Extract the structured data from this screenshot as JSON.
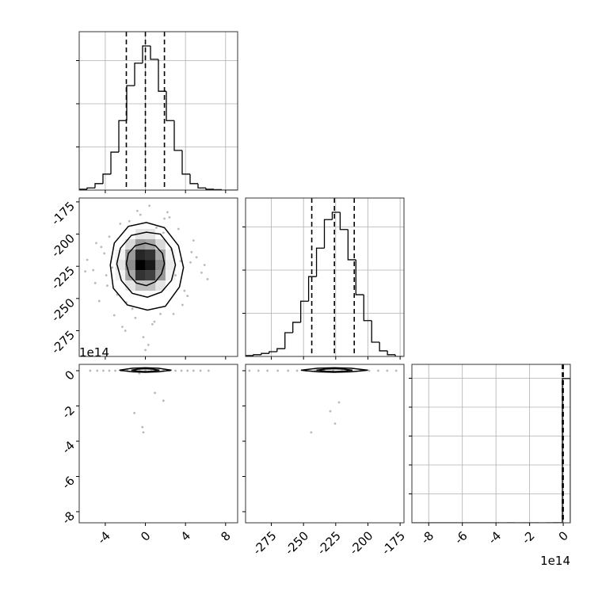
{
  "chart_data": [
    {
      "type": "histogram",
      "bins": [
        -6.6,
        -5.81,
        -5.02,
        -4.23,
        -3.44,
        -2.65,
        -1.86,
        -1.07,
        -0.28,
        0.51,
        1.3,
        2.09,
        2.88,
        3.67,
        4.46,
        5.25,
        6.04,
        6.83,
        7.62,
        8.41,
        9.2
      ],
      "counts": [
        2,
        5,
        15,
        37,
        88,
        161,
        242,
        294,
        334,
        303,
        229,
        161,
        92,
        37,
        15,
        5,
        2,
        1,
        0,
        0
      ],
      "quantiles": [
        -1.9,
        0,
        1.9
      ],
      "color": "#000000",
      "grid": true,
      "xlim": [
        -6.6,
        9.2
      ],
      "ylim": [
        0,
        367
      ],
      "xticks": [
        -4,
        0,
        4,
        8
      ],
      "yticks": [
        100,
        200,
        300
      ]
    },
    {
      "type": "scatter",
      "x": [
        -4.1,
        -3.8,
        -5.2,
        4.5,
        3.9,
        5.6,
        -2.5,
        2.8,
        -0.5,
        0.7,
        -1.3,
        1.9,
        -4.6,
        4.8,
        -3.1,
        3.3,
        -0.2,
        0.4,
        -5.8,
        6.2,
        -2.0,
        2.2,
        -3.6,
        3.7,
        1.1,
        -1.0,
        -4.4,
        4.2,
        0.0,
        -2.8,
        2.6,
        -5.0,
        5.1,
        -1.6,
        1.5,
        -3.3,
        3.0,
        0.9,
        -0.8,
        -4.9,
        4.6,
        -2.3,
        2.4,
        -6.0,
        5.9,
        -1.9,
        1.8,
        -3.9,
        3.5,
        0.3
      ],
      "y": [
        -215,
        -240,
        -228,
        -222,
        -244,
        -230,
        -192,
        -262,
        -185,
        -270,
        -258,
        -188,
        -252,
        -205,
        -263,
        -196,
        -280,
        -178,
        -220,
        -235,
        -275,
        -183,
        -202,
        -255,
        -195,
        -265,
        -210,
        -248,
        -290,
        -247,
        -212,
        -238,
        -218,
        -190,
        -262,
        -226,
        -232,
        -268,
        -182,
        -207,
        -214,
        -272,
        -187,
        -229,
        -224,
        -253,
        -199,
        -232,
        -221,
        -286
      ],
      "color": "#808080",
      "density": {
        "x_edges": [
          -3,
          -2,
          -1,
          0,
          1,
          2,
          3
        ],
        "y_edges": [
          -244,
          -236,
          -228,
          -220,
          -212,
          -204,
          -196
        ],
        "counts": [
          [
            0,
            10,
            25,
            25,
            10,
            0
          ],
          [
            5,
            35,
            80,
            75,
            40,
            5
          ],
          [
            10,
            45,
            100,
            90,
            45,
            8
          ],
          [
            5,
            40,
            85,
            80,
            35,
            5
          ],
          [
            0,
            15,
            40,
            35,
            15,
            0
          ],
          [
            0,
            0,
            10,
            10,
            0,
            0
          ]
        ]
      },
      "contours": [
        {
          "x": [
            3.8,
            3.3,
            1.9,
            0.1,
            -1.7,
            -3.1,
            -3.5,
            -3.2,
            -1.8,
            0.2,
            2.0,
            3.4
          ],
          "y": [
            -226,
            -209,
            -195,
            -191,
            -194,
            -207,
            -224,
            -242,
            -255,
            -259,
            -256,
            -241
          ]
        },
        {
          "x": [
            3.0,
            2.6,
            1.5,
            0.1,
            -1.4,
            -2.5,
            -2.85,
            -2.4,
            -1.3,
            0.2,
            1.6,
            2.6
          ],
          "y": [
            -224,
            -211,
            -200,
            -198.5,
            -201,
            -211,
            -223,
            -236,
            -246,
            -249,
            -245,
            -236
          ]
        },
        {
          "x": [
            1.9,
            1.7,
            1.0,
            0.0,
            -1.0,
            -1.7,
            -1.9,
            -1.6,
            -0.9,
            0.1,
            1.0,
            1.6
          ],
          "y": [
            -223,
            -215,
            -209,
            -207,
            -209,
            -215,
            -223,
            -232,
            -238,
            -240,
            -237,
            -231
          ]
        }
      ],
      "xlim": [
        -6.6,
        9.2
      ],
      "ylim": [
        -295,
        -172
      ],
      "xticks": [
        -4,
        0,
        4,
        8
      ],
      "yticks": [
        -275,
        -250,
        -225,
        -200,
        -175
      ]
    },
    {
      "type": "histogram",
      "bins": [
        -295,
        -288.88,
        -282.76,
        -276.64,
        -270.52,
        -264.4,
        -258.28,
        -252.16,
        -246.04,
        -239.92,
        -233.8,
        -227.68,
        -221.56,
        -215.44,
        -209.32,
        -203.2,
        -197.08,
        -190.96,
        -184.84,
        -178.72,
        -172.6
      ],
      "counts": [
        2,
        4,
        7,
        11,
        18,
        55,
        79,
        128,
        185,
        251,
        317,
        334,
        294,
        224,
        143,
        83,
        33,
        13,
        4,
        0
      ],
      "quantiles": [
        -243.6,
        -226,
        -210.6
      ],
      "color": "#000000",
      "grid": true,
      "xlim": [
        -295,
        -172
      ],
      "ylim": [
        0,
        367
      ],
      "xticks": [
        -275,
        -250,
        -225,
        -200,
        -175
      ],
      "yticks": [
        100,
        200,
        300
      ]
    },
    {
      "type": "scatter",
      "x": [
        -5.5,
        -4.8,
        -4.2,
        -3.6,
        -3.0,
        -2.4,
        -1.8,
        -1.2,
        -0.6,
        0,
        0.6,
        1.2,
        1.8,
        2.4,
        3.0,
        3.6,
        4.2,
        4.8,
        5.5,
        6.3,
        0.95,
        1.8,
        -1.1,
        -0.3,
        -0.2,
        -0.6
      ],
      "y": [
        0,
        0,
        0,
        0,
        0,
        0,
        0,
        0,
        0,
        0,
        0,
        0,
        0,
        0,
        0,
        0,
        0,
        0,
        0,
        0,
        -1.26,
        -1.7,
        -2.4,
        -3.2,
        -3.5,
        -0.15
      ],
      "color": "#808080",
      "contours": [
        {
          "x": [
            -2.6,
            -1.3,
            0,
            1.3,
            2.6,
            1.3,
            0,
            -1.3
          ],
          "y": [
            0.03,
            0.14,
            0.17,
            0.14,
            0.03,
            -0.06,
            -0.09,
            -0.06
          ]
        },
        {
          "x": [
            -1.4,
            -0.7,
            0,
            0.7,
            1.4,
            0.7,
            0,
            -0.7
          ],
          "y": [
            0.03,
            0.09,
            0.11,
            0.09,
            0.03,
            -0.03,
            -0.05,
            -0.03
          ]
        }
      ],
      "y_offset": "1e14",
      "xlim": [
        -6.6,
        9.2
      ],
      "ylim": [
        -8.63,
        0.36
      ],
      "xticks": [
        -4,
        0,
        4,
        8
      ],
      "yticks": [
        -8,
        -6,
        -4,
        -2,
        0
      ]
    },
    {
      "type": "scatter",
      "x": [
        -292,
        -285,
        -278,
        -270,
        -262,
        -255,
        -248,
        -241,
        -234,
        -227,
        -220,
        -213,
        -206,
        -199,
        -192,
        -185,
        -178,
        -229.2,
        -225.5,
        -244,
        -222.4
      ],
      "y": [
        0,
        0,
        0,
        0,
        0,
        0,
        0,
        0,
        0,
        0,
        0,
        0,
        0,
        0,
        0,
        0,
        0,
        -2.3,
        -3.0,
        -3.5,
        -1.8
      ],
      "color": "#808080",
      "contours": [
        {
          "x": [
            -252,
            -239,
            -226,
            -213,
            -200,
            -213,
            -226,
            -239
          ],
          "y": [
            0.03,
            0.14,
            0.17,
            0.14,
            0.03,
            -0.06,
            -0.09,
            -0.06
          ]
        },
        {
          "x": [
            -240,
            -233,
            -226,
            -219,
            -212,
            -219,
            -226,
            -233
          ],
          "y": [
            0.03,
            0.09,
            0.11,
            0.09,
            0.03,
            -0.03,
            -0.05,
            -0.03
          ]
        }
      ],
      "xlim": [
        -295,
        -172
      ],
      "ylim": [
        -8.63,
        0.36
      ],
      "xticks": [
        -275,
        -250,
        -225,
        -200,
        -175
      ],
      "yticks": [
        -8,
        -6,
        -4,
        -2,
        0
      ]
    },
    {
      "type": "histogram",
      "bins": [
        -9.0,
        -8.529,
        -8.058,
        -7.587,
        -7.116,
        -6.645,
        -6.174,
        -5.703,
        -5.232,
        -4.761,
        -4.29,
        -3.819,
        -3.348,
        -2.877,
        -2.406,
        -1.935,
        -1.464,
        -0.993,
        -0.522,
        -0.051,
        0.42
      ],
      "counts": [
        1,
        0,
        0,
        0,
        0,
        0,
        0,
        0,
        0,
        0,
        0,
        1,
        1,
        0,
        0,
        0,
        1,
        1,
        2,
        4990
      ],
      "quantiles": [
        -0.05,
        -0.02,
        0.0
      ],
      "color": "#000000",
      "grid": true,
      "x_offset": "1e14",
      "xlim": [
        -9.0,
        0.42
      ],
      "ylim": [
        0,
        5480
      ],
      "xticks": [
        -8,
        -6,
        -4,
        -2,
        0
      ],
      "yticks": [
        1000,
        2000,
        3000,
        4000,
        5000
      ]
    }
  ]
}
